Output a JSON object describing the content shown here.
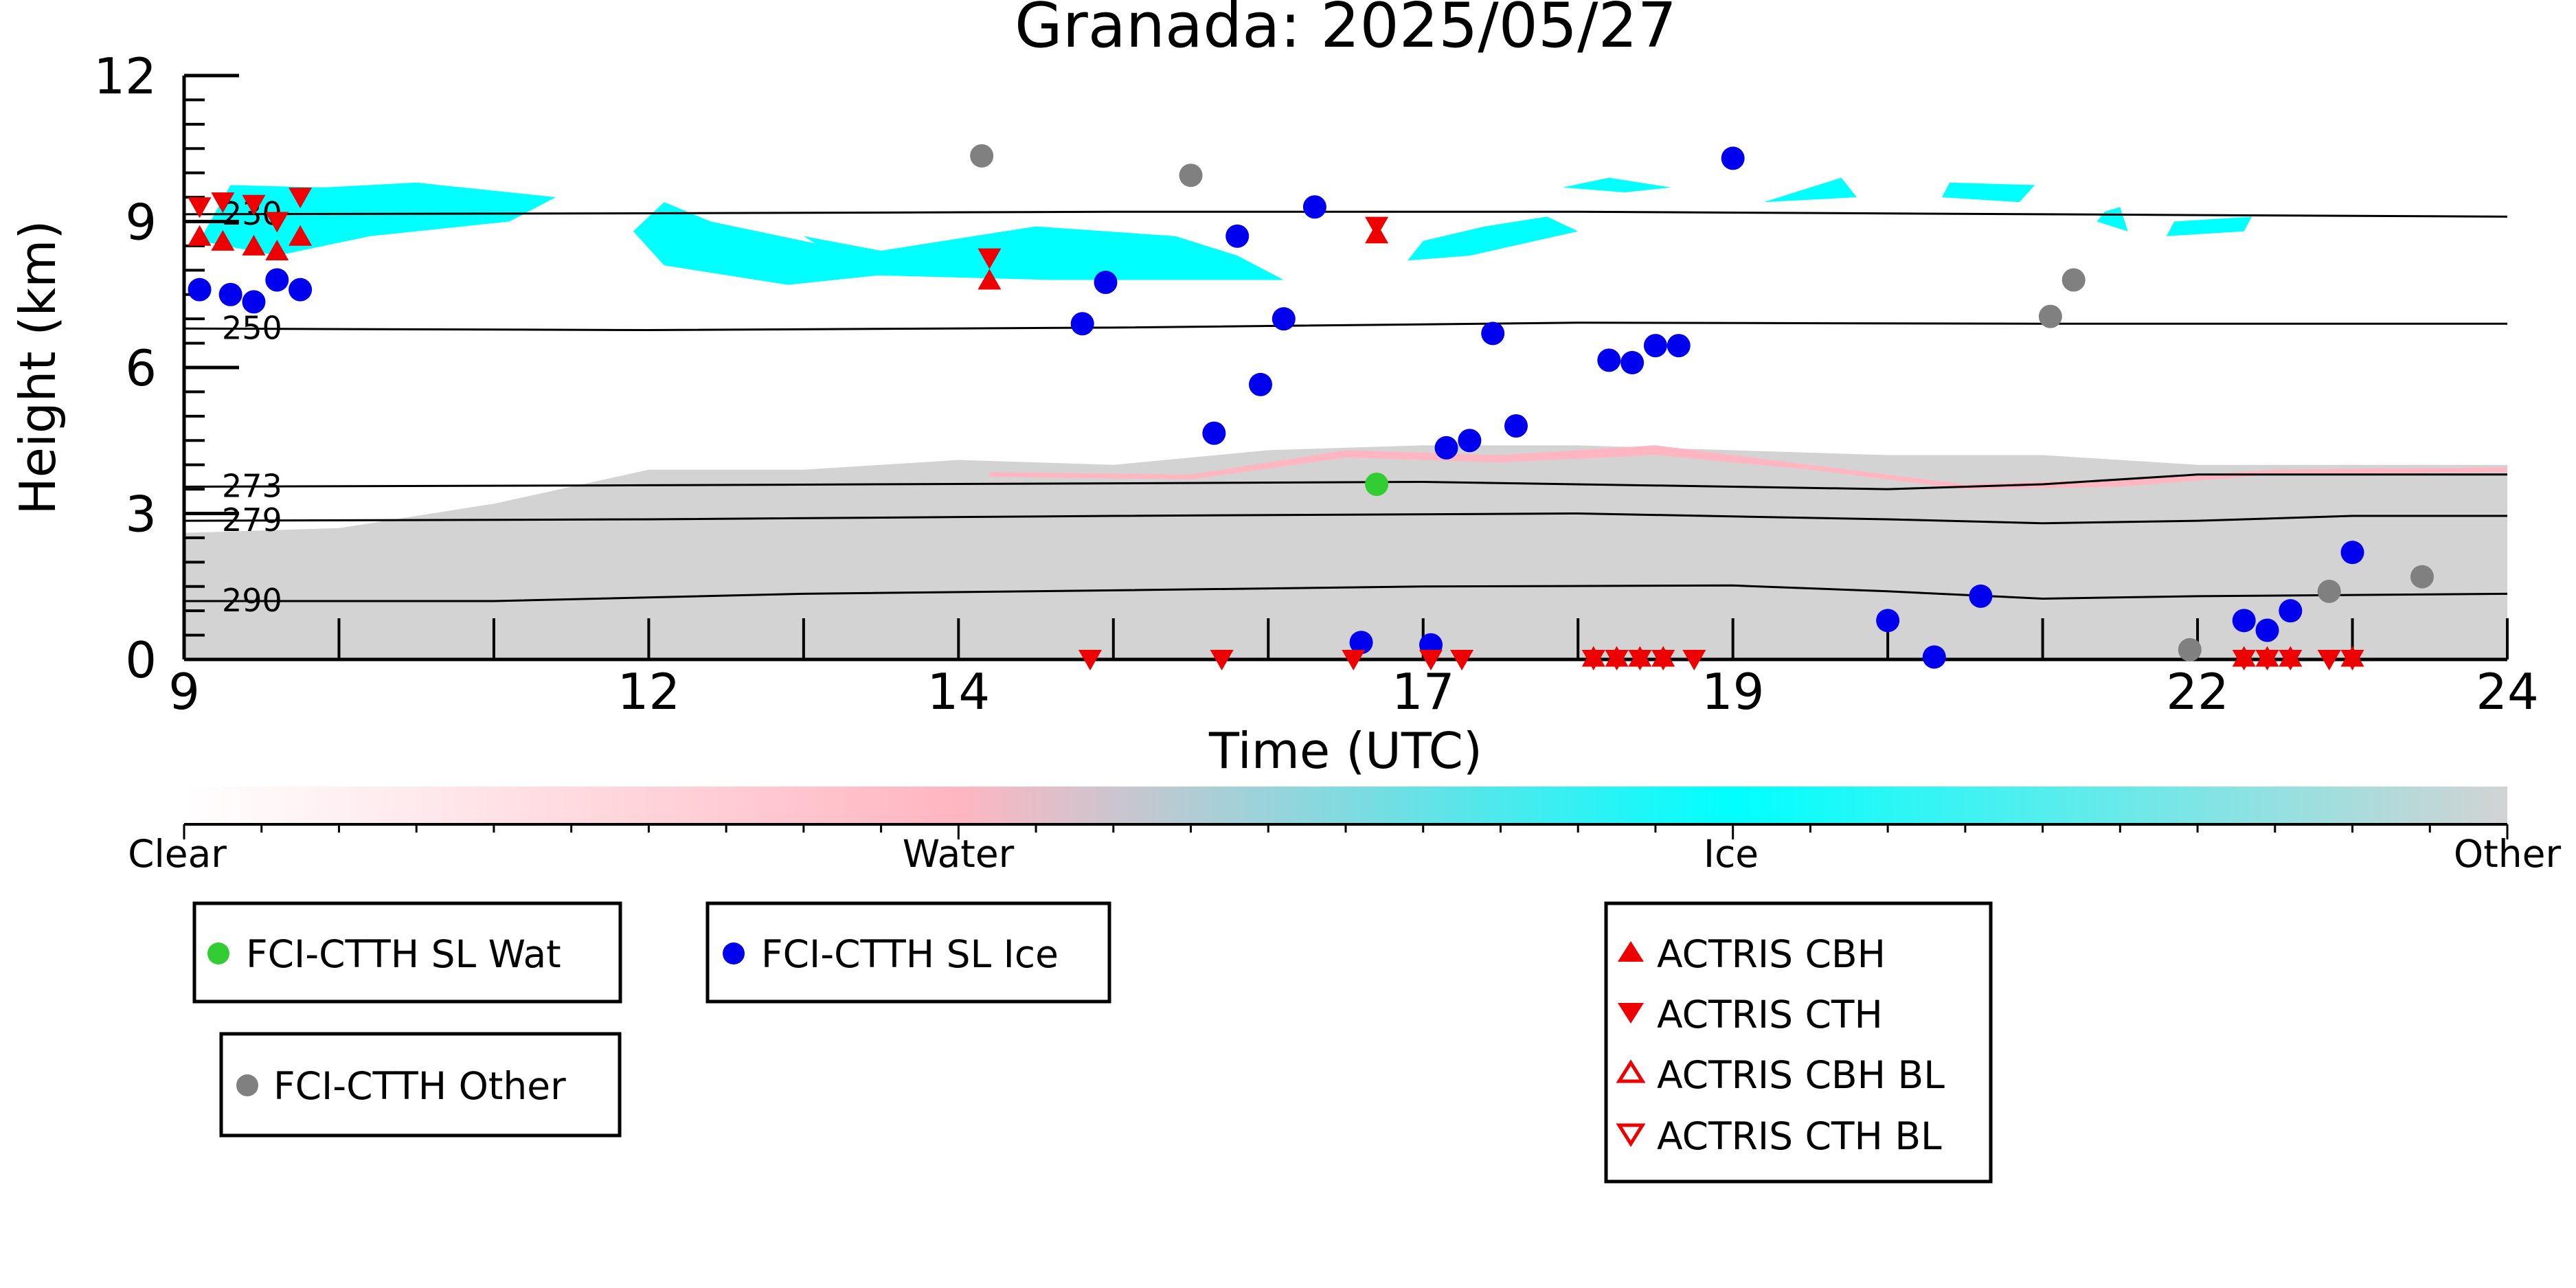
{
  "chart_data": {
    "type": "scatter",
    "title": "Granada: 2025/05/27",
    "xlabel": "Time (UTC)",
    "ylabel": "Height (km)",
    "xlim": [
      9,
      24
    ],
    "ylim": [
      0,
      12
    ],
    "x_ticks": [
      9,
      12,
      14,
      17,
      19,
      22,
      24
    ],
    "x_tick_labels": [
      "9",
      "12",
      "14",
      "17",
      "19",
      "22",
      "24"
    ],
    "y_ticks": [
      0,
      3,
      6,
      9,
      12
    ],
    "y_tick_labels": [
      "0",
      "3",
      "6",
      "9",
      "12"
    ],
    "grid": false,
    "isotherms": [
      {
        "label": "230",
        "points": [
          [
            9,
            9.15
          ],
          [
            12,
            9.17
          ],
          [
            15,
            9.2
          ],
          [
            18,
            9.2
          ],
          [
            21,
            9.15
          ],
          [
            24,
            9.1
          ]
        ]
      },
      {
        "label": "250",
        "points": [
          [
            9,
            6.8
          ],
          [
            12,
            6.77
          ],
          [
            15,
            6.82
          ],
          [
            18,
            6.92
          ],
          [
            21,
            6.9
          ],
          [
            24,
            6.9
          ]
        ]
      },
      {
        "label": "273",
        "points": [
          [
            9,
            3.55
          ],
          [
            12,
            3.58
          ],
          [
            15,
            3.62
          ],
          [
            17,
            3.65
          ],
          [
            19,
            3.55
          ],
          [
            20,
            3.5
          ],
          [
            21,
            3.6
          ],
          [
            22,
            3.8
          ],
          [
            24,
            3.8
          ]
        ]
      },
      {
        "label": "279",
        "points": [
          [
            9,
            2.85
          ],
          [
            12,
            2.88
          ],
          [
            15,
            2.95
          ],
          [
            18,
            3.0
          ],
          [
            20,
            2.88
          ],
          [
            21,
            2.8
          ],
          [
            22,
            2.85
          ],
          [
            23,
            2.95
          ],
          [
            24,
            2.95
          ]
        ]
      },
      {
        "label": "290",
        "points": [
          [
            9,
            1.2
          ],
          [
            11,
            1.2
          ],
          [
            13,
            1.35
          ],
          [
            15,
            1.42
          ],
          [
            17,
            1.5
          ],
          [
            19,
            1.52
          ],
          [
            20,
            1.4
          ],
          [
            21,
            1.25
          ],
          [
            22,
            1.3
          ],
          [
            24,
            1.35
          ]
        ]
      }
    ],
    "background_regions": [
      {
        "class": "Other",
        "points": [
          [
            9,
            0
          ],
          [
            9,
            2.6
          ],
          [
            10,
            2.7
          ],
          [
            11,
            3.2
          ],
          [
            12,
            3.9
          ],
          [
            13,
            3.9
          ],
          [
            14,
            4.1
          ],
          [
            15,
            4.0
          ],
          [
            16,
            4.3
          ],
          [
            17,
            4.4
          ],
          [
            18,
            4.4
          ],
          [
            19,
            4.3
          ],
          [
            20,
            4.2
          ],
          [
            21,
            4.2
          ],
          [
            22,
            4.0
          ],
          [
            24,
            4.0
          ],
          [
            24,
            0
          ]
        ]
      },
      {
        "class": "Water",
        "points": [
          [
            14.2,
            3.85
          ],
          [
            15.5,
            3.8
          ],
          [
            16.5,
            4.3
          ],
          [
            17.5,
            4.2
          ],
          [
            18.5,
            4.4
          ],
          [
            19.5,
            4.0
          ],
          [
            20.5,
            3.6
          ],
          [
            21.5,
            3.7
          ],
          [
            22.5,
            3.9
          ],
          [
            24,
            3.95
          ],
          [
            24,
            3.85
          ],
          [
            22.5,
            3.8
          ],
          [
            21.5,
            3.55
          ],
          [
            20.5,
            3.5
          ],
          [
            19.5,
            3.9
          ],
          [
            18.5,
            4.2
          ],
          [
            17.5,
            4.05
          ],
          [
            16.5,
            4.15
          ],
          [
            15.5,
            3.7
          ],
          [
            14.2,
            3.75
          ]
        ]
      }
    ],
    "ice_clouds": [
      {
        "points": [
          [
            9.1,
            8.6
          ],
          [
            9.3,
            9.75
          ],
          [
            9.9,
            9.7
          ],
          [
            10.5,
            9.8
          ],
          [
            11.4,
            9.5
          ],
          [
            11.1,
            9.0
          ],
          [
            10.2,
            8.7
          ],
          [
            9.6,
            8.3
          ]
        ]
      },
      {
        "points": [
          [
            11.9,
            8.8
          ],
          [
            12.1,
            9.4
          ],
          [
            12.4,
            9.0
          ],
          [
            13.3,
            8.4
          ],
          [
            13.8,
            8.0
          ],
          [
            12.9,
            7.7
          ],
          [
            12.1,
            8.1
          ]
        ]
      },
      {
        "points": [
          [
            13.0,
            8.7
          ],
          [
            13.5,
            8.4
          ],
          [
            14.5,
            8.9
          ],
          [
            15.4,
            8.7
          ],
          [
            15.8,
            8.3
          ],
          [
            16.1,
            7.8
          ],
          [
            15.6,
            7.8
          ],
          [
            14.6,
            7.8
          ],
          [
            13.4,
            7.9
          ]
        ]
      },
      {
        "points": [
          [
            17.0,
            8.6
          ],
          [
            17.4,
            8.9
          ],
          [
            17.8,
            9.1
          ],
          [
            18.0,
            8.8
          ],
          [
            17.3,
            8.3
          ],
          [
            16.9,
            8.2
          ]
        ]
      },
      {
        "points": [
          [
            17.9,
            9.7
          ],
          [
            18.2,
            9.9
          ],
          [
            18.6,
            9.7
          ],
          [
            18.3,
            9.6
          ]
        ]
      },
      {
        "points": [
          [
            19.2,
            9.4
          ],
          [
            19.5,
            9.7
          ],
          [
            19.7,
            9.9
          ],
          [
            19.8,
            9.5
          ]
        ]
      },
      {
        "points": [
          [
            20.35,
            9.5
          ],
          [
            20.4,
            9.8
          ],
          [
            20.95,
            9.75
          ],
          [
            20.85,
            9.4
          ]
        ]
      },
      {
        "points": [
          [
            21.35,
            9.0
          ],
          [
            21.4,
            9.2
          ],
          [
            21.5,
            9.3
          ],
          [
            21.55,
            8.8
          ]
        ]
      },
      {
        "points": [
          [
            21.8,
            8.7
          ],
          [
            21.85,
            9.0
          ],
          [
            22.35,
            9.1
          ],
          [
            22.3,
            8.8
          ]
        ]
      }
    ],
    "colorbar": {
      "labels": [
        "Clear",
        "Water",
        "Ice",
        "Other"
      ],
      "colors": [
        "#ffffff",
        "#ffb6c1",
        "#00ffff",
        "#d3d3d3"
      ]
    },
    "series": [
      {
        "name": "FCI-CTTH SL Wat",
        "marker": "circle",
        "color": "#32cd32",
        "points": [
          [
            16.7,
            3.6
          ]
        ]
      },
      {
        "name": "FCI-CTTH SL Ice",
        "marker": "circle",
        "color": "#0000ee",
        "points": [
          [
            9.1,
            7.6
          ],
          [
            9.3,
            7.5
          ],
          [
            9.45,
            7.35
          ],
          [
            9.6,
            7.8
          ],
          [
            9.75,
            7.6
          ],
          [
            14.8,
            6.9
          ],
          [
            14.95,
            7.75
          ],
          [
            15.65,
            4.65
          ],
          [
            15.8,
            8.7
          ],
          [
            15.95,
            5.65
          ],
          [
            16.1,
            7.0
          ],
          [
            16.3,
            9.3
          ],
          [
            16.6,
            0.35
          ],
          [
            17.05,
            0.3
          ],
          [
            17.15,
            4.35
          ],
          [
            17.3,
            4.5
          ],
          [
            17.45,
            6.7
          ],
          [
            17.6,
            4.8
          ],
          [
            18.2,
            6.15
          ],
          [
            18.35,
            6.1
          ],
          [
            18.5,
            6.45
          ],
          [
            18.65,
            6.45
          ],
          [
            19.0,
            10.3
          ],
          [
            20.0,
            0.8
          ],
          [
            20.3,
            0.05
          ],
          [
            20.6,
            1.3
          ],
          [
            22.3,
            0.8
          ],
          [
            22.45,
            0.6
          ],
          [
            22.6,
            1.0
          ],
          [
            23.0,
            2.2
          ]
        ]
      },
      {
        "name": "FCI-CTTH Other",
        "marker": "circle",
        "color": "#808080",
        "points": [
          [
            14.15,
            10.35
          ],
          [
            15.5,
            9.95
          ],
          [
            21.05,
            7.05
          ],
          [
            21.2,
            7.8
          ],
          [
            21.95,
            0.2
          ],
          [
            22.85,
            1.4
          ],
          [
            23.45,
            1.7
          ]
        ]
      },
      {
        "name": "ACTRIS CBH",
        "marker": "triangle-up",
        "color": "#ee0000",
        "points": [
          [
            9.1,
            8.7
          ],
          [
            9.25,
            8.6
          ],
          [
            9.45,
            8.5
          ],
          [
            9.6,
            8.4
          ],
          [
            9.75,
            8.7
          ],
          [
            14.2,
            7.8
          ],
          [
            16.7,
            8.75
          ],
          [
            18.1,
            0.05
          ],
          [
            18.25,
            0.05
          ],
          [
            18.4,
            0.05
          ],
          [
            18.55,
            0.05
          ],
          [
            22.3,
            0.05
          ],
          [
            22.45,
            0.05
          ],
          [
            22.6,
            0.05
          ],
          [
            23.0,
            0.05
          ]
        ]
      },
      {
        "name": "ACTRIS CTH",
        "marker": "triangle-down",
        "color": "#ee0000",
        "points": [
          [
            9.1,
            9.3
          ],
          [
            9.25,
            9.4
          ],
          [
            9.45,
            9.35
          ],
          [
            9.6,
            9.0
          ],
          [
            9.75,
            9.5
          ],
          [
            14.2,
            8.25
          ],
          [
            16.7,
            8.9
          ],
          [
            14.85,
            0.0
          ],
          [
            15.7,
            0.0
          ],
          [
            16.55,
            0.0
          ],
          [
            17.05,
            0.0
          ],
          [
            17.25,
            0.0
          ],
          [
            18.1,
            0.0
          ],
          [
            18.25,
            0.0
          ],
          [
            18.4,
            0.0
          ],
          [
            18.55,
            0.0
          ],
          [
            18.75,
            0.0
          ],
          [
            22.3,
            0.0
          ],
          [
            22.45,
            0.0
          ],
          [
            22.6,
            0.0
          ],
          [
            22.85,
            0.0
          ],
          [
            23.0,
            0.0
          ]
        ]
      },
      {
        "name": "ACTRIS CBH BL",
        "marker": "triangle-up-open",
        "color": "#ee0000",
        "points": []
      },
      {
        "name": "ACTRIS CTH BL",
        "marker": "triangle-down-open",
        "color": "#ee0000",
        "points": []
      }
    ]
  }
}
